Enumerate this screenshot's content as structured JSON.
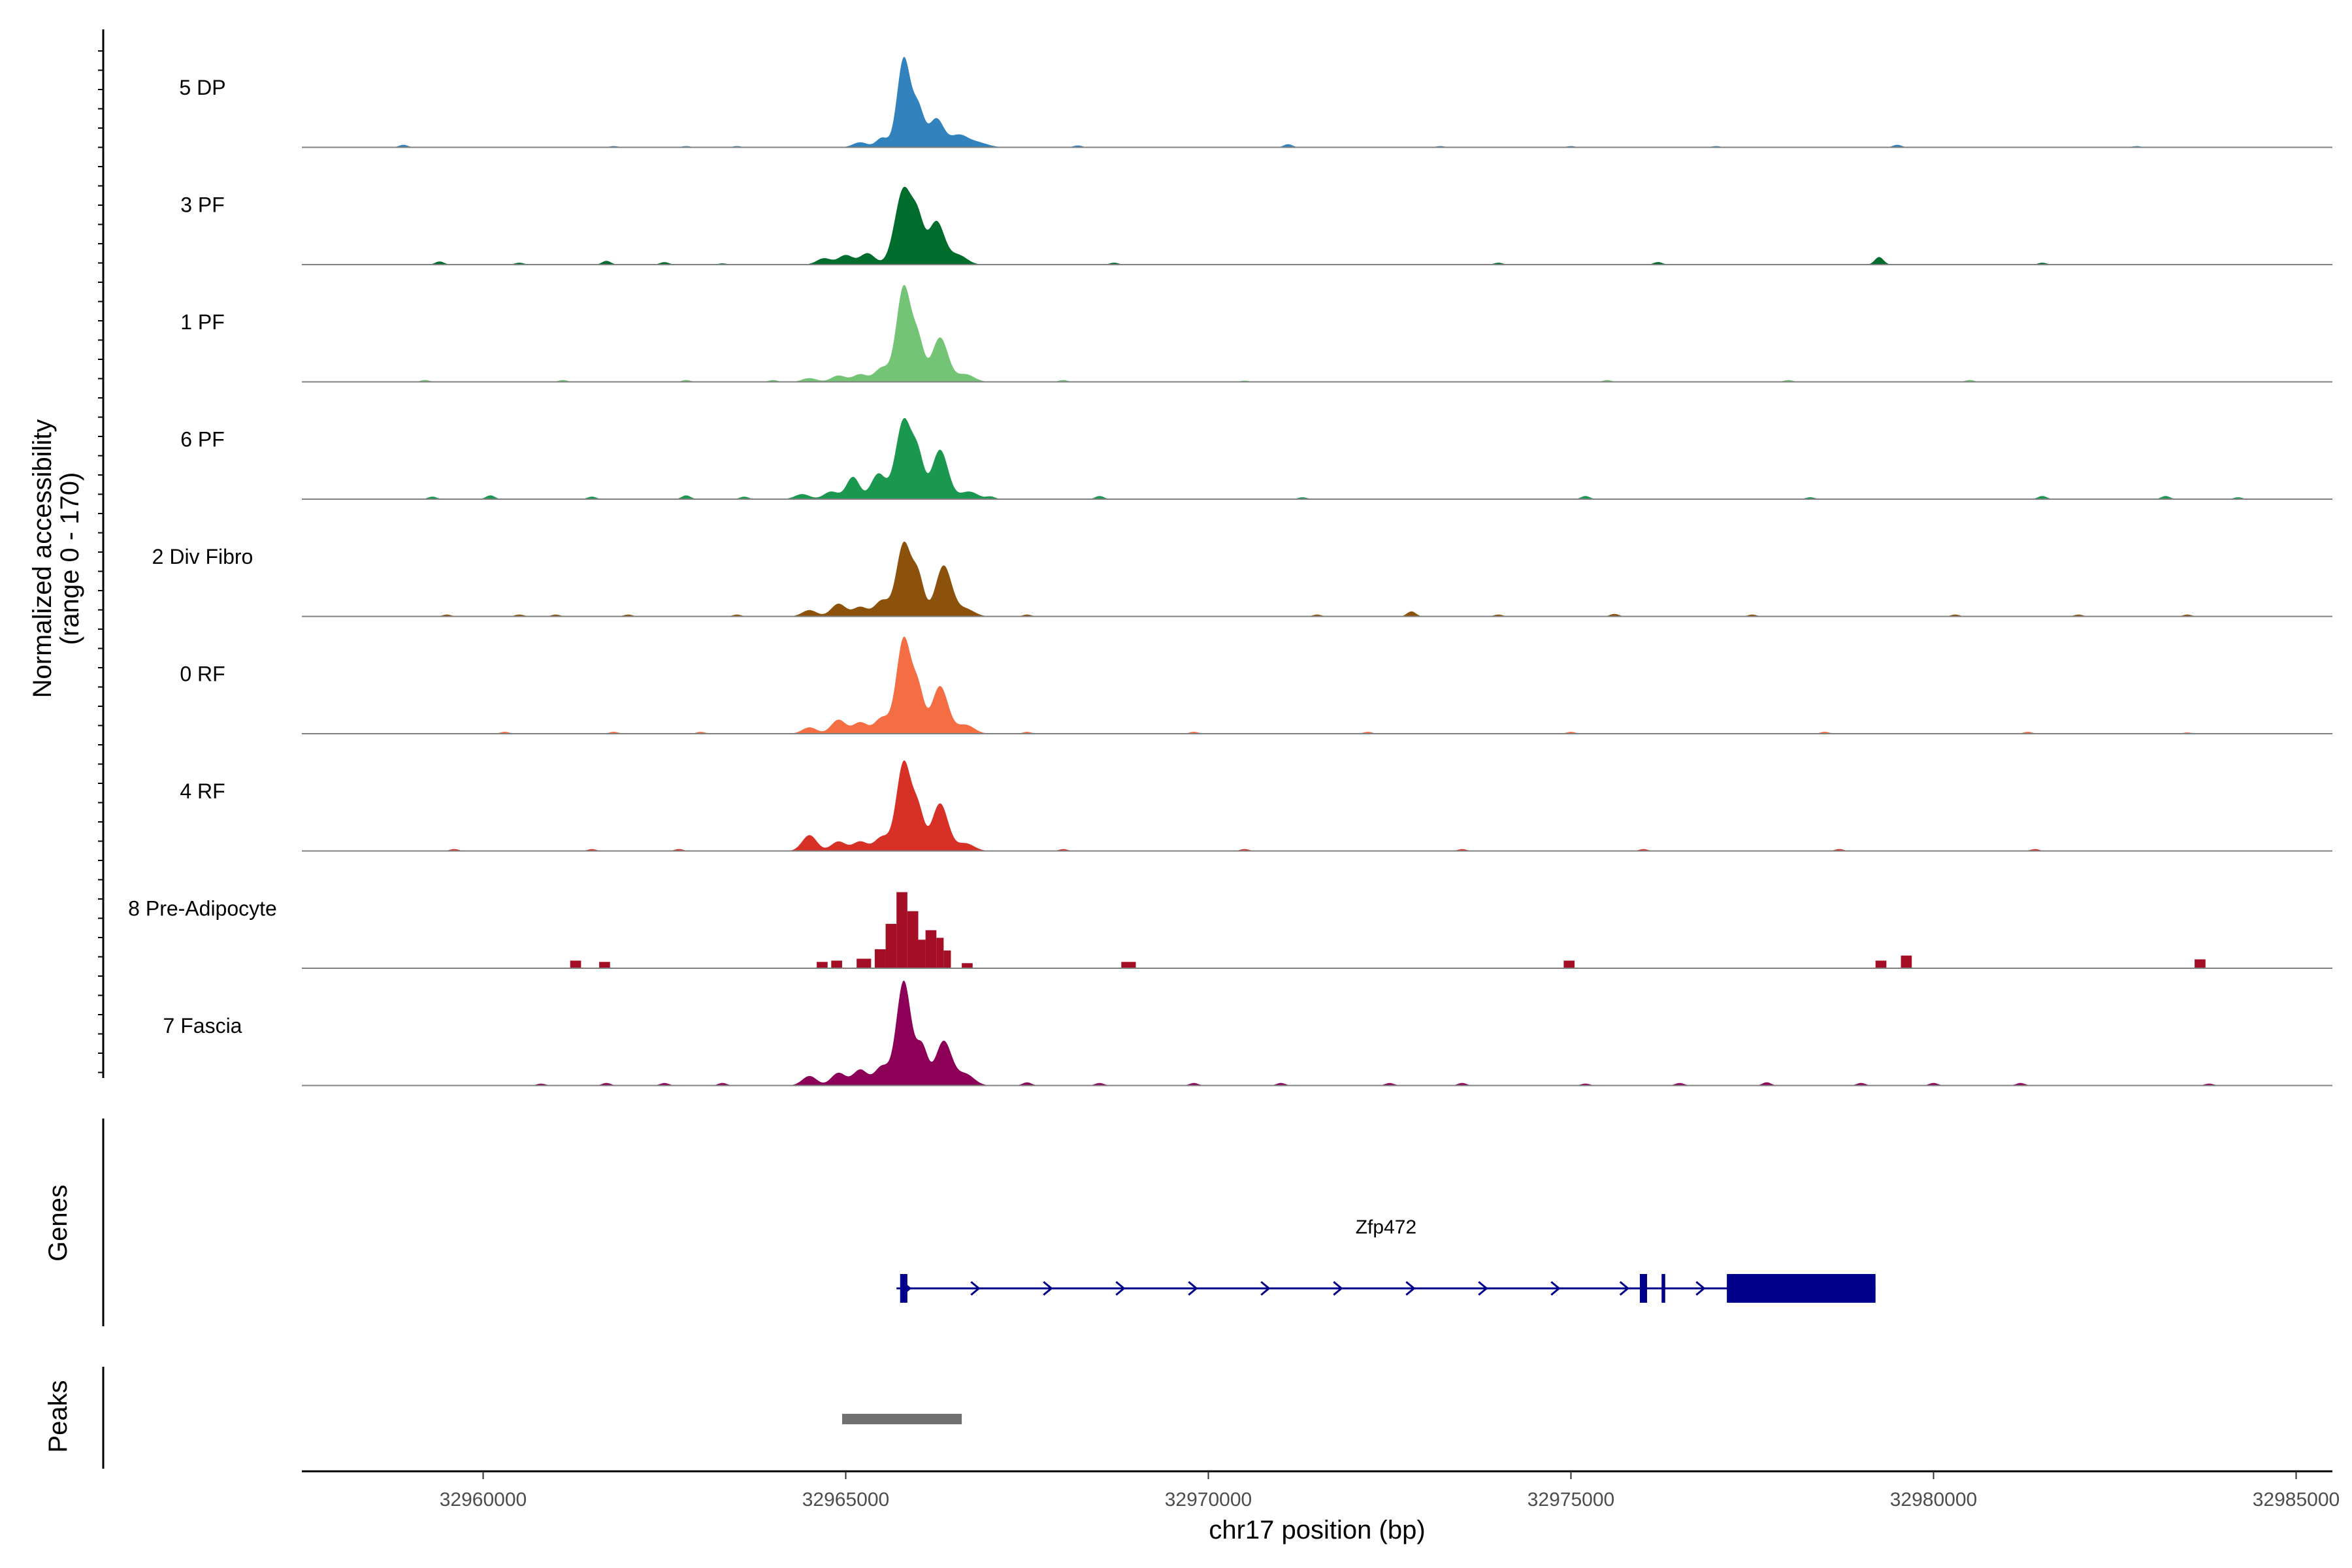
{
  "chart_data": {
    "type": "area",
    "title": "",
    "ylabel_line1": "Normalized accessibility",
    "ylabel_line2": "(range 0 - 170)",
    "ylim": [
      0,
      170
    ],
    "xlabel": "chr17 position (bp)",
    "xlim": [
      32957500,
      32985500
    ],
    "xticks": [
      32960000,
      32965000,
      32970000,
      32975000,
      32980000,
      32985000
    ],
    "xtick_labels": [
      "32960000",
      "32965000",
      "32970000",
      "32975000",
      "32980000",
      "32985000"
    ],
    "series": [
      {
        "name": "5 DP",
        "color": "#3182bd",
        "peaks": [
          [
            32965200,
            8,
            100
          ],
          [
            32965500,
            15,
            80
          ],
          [
            32965800,
            140,
            90
          ],
          [
            32966000,
            60,
            80
          ],
          [
            32966250,
            45,
            100
          ],
          [
            32966550,
            18,
            120
          ],
          [
            32966800,
            8,
            150
          ]
        ],
        "baseline_bumps": [
          [
            32958900,
            4
          ],
          [
            32961800,
            2
          ],
          [
            32962800,
            2
          ],
          [
            32963500,
            2
          ],
          [
            32968200,
            3
          ],
          [
            32971100,
            5
          ],
          [
            32973200,
            2
          ],
          [
            32975000,
            2
          ],
          [
            32977000,
            2
          ],
          [
            32979500,
            4
          ],
          [
            32982800,
            2
          ]
        ]
      },
      {
        "name": "3 PF",
        "color": "#006d2c",
        "peaks": [
          [
            32964700,
            10,
            100
          ],
          [
            32965000,
            15,
            100
          ],
          [
            32965300,
            18,
            100
          ],
          [
            32965800,
            120,
            120
          ],
          [
            32966000,
            55,
            80
          ],
          [
            32966250,
            68,
            110
          ],
          [
            32966550,
            15,
            120
          ]
        ],
        "baseline_bumps": [
          [
            32959400,
            5
          ],
          [
            32960500,
            3
          ],
          [
            32961700,
            6
          ],
          [
            32962500,
            4
          ],
          [
            32963300,
            2
          ],
          [
            32968700,
            3
          ],
          [
            32974000,
            3
          ],
          [
            32976200,
            4
          ],
          [
            32979250,
            12
          ],
          [
            32981500,
            3
          ]
        ]
      },
      {
        "name": "1 PF",
        "color": "#74c476",
        "peaks": [
          [
            32964500,
            6,
            100
          ],
          [
            32964900,
            10,
            100
          ],
          [
            32965200,
            12,
            100
          ],
          [
            32965500,
            22,
            100
          ],
          [
            32965800,
            150,
            100
          ],
          [
            32966000,
            60,
            80
          ],
          [
            32966300,
            70,
            110
          ],
          [
            32966650,
            12,
            120
          ]
        ],
        "baseline_bumps": [
          [
            32959200,
            3
          ],
          [
            32961100,
            3
          ],
          [
            32962800,
            3
          ],
          [
            32964000,
            3
          ],
          [
            32968000,
            3
          ],
          [
            32970500,
            2
          ],
          [
            32975500,
            3
          ],
          [
            32978000,
            3
          ],
          [
            32980500,
            3
          ]
        ]
      },
      {
        "name": "6 PF",
        "color": "#1a9850",
        "peaks": [
          [
            32964400,
            8,
            100
          ],
          [
            32964800,
            12,
            100
          ],
          [
            32965100,
            35,
            90
          ],
          [
            32965450,
            40,
            100
          ],
          [
            32965800,
            125,
            110
          ],
          [
            32966000,
            60,
            80
          ],
          [
            32966300,
            78,
            110
          ],
          [
            32966700,
            12,
            120
          ]
        ],
        "baseline_bumps": [
          [
            32959300,
            4
          ],
          [
            32960100,
            6
          ],
          [
            32961500,
            4
          ],
          [
            32962800,
            6
          ],
          [
            32963600,
            4
          ],
          [
            32967000,
            4
          ],
          [
            32968500,
            5
          ],
          [
            32971300,
            3
          ],
          [
            32975200,
            5
          ],
          [
            32978300,
            3
          ],
          [
            32981500,
            5
          ],
          [
            32983200,
            5
          ],
          [
            32984200,
            3
          ]
        ]
      },
      {
        "name": "2 Div Fibro",
        "color": "#8c510a",
        "peaks": [
          [
            32964500,
            10,
            100
          ],
          [
            32964900,
            20,
            100
          ],
          [
            32965200,
            15,
            100
          ],
          [
            32965500,
            25,
            100
          ],
          [
            32965800,
            115,
            100
          ],
          [
            32966000,
            60,
            80
          ],
          [
            32966350,
            80,
            110
          ],
          [
            32966650,
            12,
            120
          ]
        ],
        "baseline_bumps": [
          [
            32959500,
            3
          ],
          [
            32960500,
            3
          ],
          [
            32961000,
            3
          ],
          [
            32962000,
            3
          ],
          [
            32963500,
            3
          ],
          [
            32967500,
            3
          ],
          [
            32971500,
            3
          ],
          [
            32972800,
            8
          ],
          [
            32974000,
            3
          ],
          [
            32975600,
            4
          ],
          [
            32977500,
            3
          ],
          [
            32980300,
            3
          ],
          [
            32982000,
            3
          ],
          [
            32983500,
            3
          ]
        ]
      },
      {
        "name": "0 RF",
        "color": "#f46d43",
        "peaks": [
          [
            32964500,
            10,
            100
          ],
          [
            32964900,
            22,
            100
          ],
          [
            32965200,
            18,
            100
          ],
          [
            32965500,
            25,
            100
          ],
          [
            32965800,
            150,
            100
          ],
          [
            32966000,
            65,
            80
          ],
          [
            32966300,
            75,
            110
          ],
          [
            32966650,
            14,
            120
          ]
        ],
        "baseline_bumps": [
          [
            32960300,
            3
          ],
          [
            32961800,
            3
          ],
          [
            32963000,
            3
          ],
          [
            32967500,
            3
          ],
          [
            32969800,
            3
          ],
          [
            32972200,
            3
          ],
          [
            32975000,
            3
          ],
          [
            32978500,
            3
          ],
          [
            32981300,
            3
          ],
          [
            32983500,
            2
          ]
        ]
      },
      {
        "name": "4 RF",
        "color": "#d73027",
        "peaks": [
          [
            32964500,
            25,
            100
          ],
          [
            32964900,
            15,
            100
          ],
          [
            32965200,
            15,
            100
          ],
          [
            32965500,
            22,
            100
          ],
          [
            32965800,
            140,
            100
          ],
          [
            32966000,
            60,
            80
          ],
          [
            32966300,
            75,
            110
          ],
          [
            32966650,
            12,
            120
          ]
        ],
        "baseline_bumps": [
          [
            32959600,
            3
          ],
          [
            32961500,
            3
          ],
          [
            32962700,
            3
          ],
          [
            32968000,
            3
          ],
          [
            32970500,
            3
          ],
          [
            32973500,
            3
          ],
          [
            32976000,
            3
          ],
          [
            32978700,
            3
          ],
          [
            32981400,
            3
          ]
        ]
      },
      {
        "name": "8 Pre-Adipocyte",
        "color": "#a50f25",
        "blocks": [
          [
            32961200,
            32961350,
            12
          ],
          [
            32961600,
            32961750,
            10
          ],
          [
            32964600,
            32964750,
            10
          ],
          [
            32964800,
            32964950,
            12
          ],
          [
            32965150,
            32965350,
            15
          ],
          [
            32965400,
            32965550,
            30
          ],
          [
            32965550,
            32965700,
            70
          ],
          [
            32965700,
            32965850,
            120
          ],
          [
            32965850,
            32966000,
            90
          ],
          [
            32966000,
            32966100,
            45
          ],
          [
            32966100,
            32966250,
            60
          ],
          [
            32966250,
            32966350,
            48
          ],
          [
            32966350,
            32966450,
            28
          ],
          [
            32966600,
            32966750,
            8
          ],
          [
            32968800,
            32969000,
            10
          ],
          [
            32974900,
            32975050,
            12
          ],
          [
            32979200,
            32979350,
            12
          ],
          [
            32979550,
            32979700,
            20
          ],
          [
            32983600,
            32983750,
            14
          ]
        ]
      },
      {
        "name": "7 Fascia",
        "color": "#8c0057",
        "peaks": [
          [
            32964500,
            15,
            100
          ],
          [
            32964900,
            20,
            100
          ],
          [
            32965200,
            25,
            100
          ],
          [
            32965500,
            30,
            100
          ],
          [
            32965800,
            165,
            100
          ],
          [
            32966050,
            60,
            80
          ],
          [
            32966350,
            70,
            110
          ],
          [
            32966650,
            18,
            120
          ]
        ],
        "baseline_bumps": [
          [
            32960800,
            3
          ],
          [
            32961700,
            4
          ],
          [
            32962500,
            4
          ],
          [
            32963300,
            4
          ],
          [
            32967500,
            5
          ],
          [
            32968500,
            4
          ],
          [
            32969800,
            4
          ],
          [
            32971000,
            4
          ],
          [
            32972500,
            4
          ],
          [
            32973500,
            4
          ],
          [
            32975200,
            3
          ],
          [
            32976500,
            4
          ],
          [
            32977700,
            5
          ],
          [
            32979000,
            4
          ],
          [
            32980000,
            4
          ],
          [
            32981200,
            4
          ],
          [
            32983800,
            3
          ]
        ]
      }
    ],
    "genes_label": "Genes",
    "peaks_label": "Peaks",
    "gene": {
      "name": "Zfp472",
      "color": "#00008b",
      "strand": "+",
      "start": 32965700,
      "end": 32979200,
      "arrows": [
        32965850,
        32966800,
        32967800,
        32968800,
        32969800,
        32970800,
        32971800,
        32972800,
        32973800,
        32974800,
        32975750,
        32976800
      ],
      "exons": [
        [
          32965750,
          32965850
        ],
        [
          32975950,
          32976050
        ],
        [
          32976250,
          32976300
        ],
        [
          32977150,
          32979200
        ]
      ]
    },
    "peak_regions": [
      {
        "start": 32964950,
        "end": 32966600,
        "color": "#707070"
      }
    ]
  }
}
